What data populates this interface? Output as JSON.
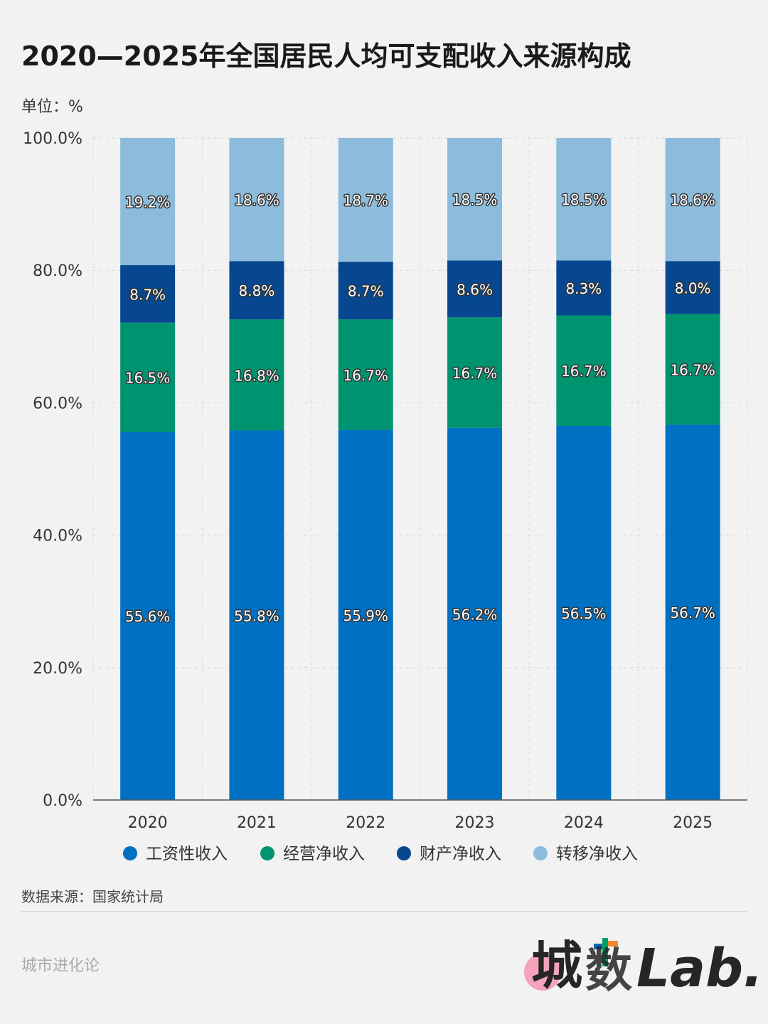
{
  "header": {
    "title": "2020—2025年全国居民人均可支配收入来源构成",
    "unit": "单位：%"
  },
  "footer": {
    "source": "数据来源：国家统计局",
    "author": "城市进化论",
    "logo_text": "城数Lab."
  },
  "chart_data": {
    "type": "bar",
    "stacked": true,
    "title": "2020—2025年全国居民人均可支配收入来源构成",
    "categories": [
      "2020",
      "2021",
      "2022",
      "2023",
      "2024",
      "2025"
    ],
    "ylim": [
      0,
      100
    ],
    "yticks": [
      "0.0%",
      "20.0%",
      "40.0%",
      "60.0%",
      "80.0%",
      "100.0%"
    ],
    "grid": true,
    "legend_position": "bottom",
    "series": [
      {
        "name": "工资性收入",
        "color": "#0071c2",
        "values": [
          55.6,
          55.8,
          55.9,
          56.2,
          56.5,
          56.7
        ],
        "labels": [
          "55.6%",
          "55.8%",
          "55.9%",
          "56.2%",
          "56.5%",
          "56.7%"
        ]
      },
      {
        "name": "经营净收入",
        "color": "#00936f",
        "values": [
          16.5,
          16.8,
          16.7,
          16.7,
          16.7,
          16.7
        ],
        "labels": [
          "16.5%",
          "16.8%",
          "16.7%",
          "16.7%",
          "16.7%",
          "16.7%"
        ]
      },
      {
        "name": "财产净收入",
        "color": "#07478f",
        "values": [
          8.7,
          8.8,
          8.7,
          8.6,
          8.3,
          8.0
        ],
        "labels": [
          "8.7%",
          "8.8%",
          "8.7%",
          "8.6%",
          "8.3%",
          "8.0%"
        ]
      },
      {
        "name": "转移净收入",
        "color": "#8cbbdc",
        "values": [
          19.2,
          18.6,
          18.7,
          18.5,
          18.5,
          18.6
        ],
        "labels": [
          "19.2%",
          "18.6%",
          "18.7%",
          "18.5%",
          "18.5%",
          "18.6%"
        ]
      }
    ]
  }
}
